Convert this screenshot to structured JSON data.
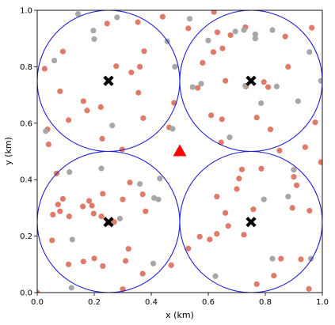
{
  "chart_data": {
    "type": "scatter",
    "title": "",
    "xlabel": "x (km)",
    "ylabel": "y (km)",
    "xlim": [
      0.0,
      1.0
    ],
    "ylim": [
      0.0,
      1.0
    ],
    "xticks": [
      "0.0",
      "0.2",
      "0.4",
      "0.6",
      "0.8",
      "1.0"
    ],
    "yticks": [
      "0.0",
      "0.2",
      "0.4",
      "0.6",
      "0.8",
      "1.0"
    ],
    "grid": false,
    "legend": null,
    "colors": {
      "red_points": "#e07b6a",
      "gray_points": "#a7a7a7",
      "circles": "#1f1fd6",
      "centers": "#000000",
      "triangle": "#ff0000"
    },
    "circles": [
      {
        "cx": 0.25,
        "cy": 0.75,
        "r": 0.25
      },
      {
        "cx": 0.75,
        "cy": 0.75,
        "r": 0.25
      },
      {
        "cx": 0.25,
        "cy": 0.25,
        "r": 0.25
      },
      {
        "cx": 0.75,
        "cy": 0.25,
        "r": 0.25
      }
    ],
    "centers": [
      {
        "x": 0.25,
        "y": 0.75
      },
      {
        "x": 0.75,
        "y": 0.75
      },
      {
        "x": 0.25,
        "y": 0.25
      },
      {
        "x": 0.75,
        "y": 0.25
      }
    ],
    "triangle": {
      "x": 0.5,
      "y": 0.5
    },
    "series": [
      {
        "values": [
          [
            0.245,
            0.953
          ],
          [
            0.353,
            0.958
          ],
          [
            0.44,
            0.977
          ],
          [
            0.09,
            0.854
          ],
          [
            0.277,
            0.802
          ],
          [
            0.33,
            0.78
          ],
          [
            0.36,
            0.8
          ],
          [
            0.375,
            0.855
          ],
          [
            0.355,
            0.708
          ],
          [
            0.08,
            0.713
          ],
          [
            0.162,
            0.678
          ],
          [
            0.223,
            0.657
          ],
          [
            0.11,
            0.611
          ],
          [
            0.175,
            0.645
          ],
          [
            0.372,
            0.618
          ],
          [
            0.463,
            0.585
          ],
          [
            0.48,
            0.672
          ],
          [
            0.228,
            0.545
          ],
          [
            0.298,
            0.507
          ],
          [
            0.036,
            0.578
          ],
          [
            0.04,
            0.525
          ],
          [
            0.026,
            0.793
          ],
          [
            0.62,
            0.994
          ],
          [
            0.53,
            0.936
          ],
          [
            0.632,
            0.922
          ],
          [
            0.678,
            0.912
          ],
          [
            0.73,
            0.94
          ],
          [
            0.88,
            0.8
          ],
          [
            0.87,
            0.907
          ],
          [
            0.58,
            0.814
          ],
          [
            0.618,
            0.852
          ],
          [
            0.65,
            0.865
          ],
          [
            0.66,
            0.75
          ],
          [
            0.795,
            0.746
          ],
          [
            0.81,
            0.728
          ],
          [
            0.963,
            0.938
          ],
          [
            0.563,
            0.725
          ],
          [
            0.61,
            0.628
          ],
          [
            0.648,
            0.614
          ],
          [
            0.645,
            0.532
          ],
          [
            0.77,
            0.62
          ],
          [
            0.818,
            0.578
          ],
          [
            0.85,
            0.503
          ],
          [
            0.94,
            0.515
          ],
          [
            0.975,
            0.603
          ],
          [
            0.732,
            0.73
          ],
          [
            0.63,
            0.34
          ],
          [
            0.708,
            0.404
          ],
          [
            0.718,
            0.436
          ],
          [
            0.786,
            0.439
          ],
          [
            0.7,
            0.367
          ],
          [
            0.758,
            0.295
          ],
          [
            0.66,
            0.282
          ],
          [
            0.67,
            0.236
          ],
          [
            0.63,
            0.208
          ],
          [
            0.605,
            0.188
          ],
          [
            0.57,
            0.198
          ],
          [
            0.53,
            0.156
          ],
          [
            0.725,
            0.205
          ],
          [
            0.895,
            0.3
          ],
          [
            0.9,
            0.41
          ],
          [
            0.91,
            0.38
          ],
          [
            0.955,
            0.29
          ],
          [
            0.995,
            0.462
          ],
          [
            0.83,
            0.06
          ],
          [
            0.855,
            0.12
          ],
          [
            0.925,
            0.118
          ],
          [
            0.953,
            0.013
          ],
          [
            0.77,
            0.03
          ],
          [
            0.068,
            0.422
          ],
          [
            0.09,
            0.332
          ],
          [
            0.073,
            0.312
          ],
          [
            0.08,
            0.288
          ],
          [
            0.055,
            0.276
          ],
          [
            0.112,
            0.27
          ],
          [
            0.16,
            0.305
          ],
          [
            0.182,
            0.325
          ],
          [
            0.192,
            0.308
          ],
          [
            0.198,
            0.28
          ],
          [
            0.23,
            0.35
          ],
          [
            0.225,
            0.27
          ],
          [
            0.25,
            0.246
          ],
          [
            0.27,
            0.25
          ],
          [
            0.3,
            0.33
          ],
          [
            0.325,
            0.39
          ],
          [
            0.37,
            0.348
          ],
          [
            0.38,
            0.288
          ],
          [
            0.32,
            0.155
          ],
          [
            0.31,
            0.112
          ],
          [
            0.2,
            0.121
          ],
          [
            0.23,
            0.094
          ],
          [
            0.11,
            0.1
          ],
          [
            0.052,
            0.185
          ],
          [
            0.162,
            0.11
          ],
          [
            0.37,
            0.067
          ],
          [
            0.47,
            0.097
          ],
          [
            0.3,
            0.012
          ],
          [
            0.0,
            0.0
          ]
        ]
      },
      {
        "values": [
          [
            0.143,
            0.987
          ],
          [
            0.28,
            0.975
          ],
          [
            0.197,
            0.928
          ],
          [
            0.456,
            0.89
          ],
          [
            0.06,
            0.822
          ],
          [
            0.2,
            0.898
          ],
          [
            0.483,
            0.8
          ],
          [
            0.03,
            0.572
          ],
          [
            0.263,
            0.592
          ],
          [
            0.475,
            0.58
          ],
          [
            0.535,
            0.97
          ],
          [
            0.6,
            0.893
          ],
          [
            0.695,
            0.925
          ],
          [
            0.725,
            0.93
          ],
          [
            0.765,
            0.915
          ],
          [
            0.765,
            0.9
          ],
          [
            0.825,
            0.93
          ],
          [
            0.955,
            0.852
          ],
          [
            0.995,
            0.75
          ],
          [
            0.545,
            0.728
          ],
          [
            0.575,
            0.74
          ],
          [
            0.73,
            0.733
          ],
          [
            0.785,
            0.671
          ],
          [
            0.915,
            0.678
          ],
          [
            0.84,
            0.73
          ],
          [
            0.675,
            0.55
          ],
          [
            0.123,
            0.188
          ],
          [
            0.113,
            0.427
          ],
          [
            0.225,
            0.44
          ],
          [
            0.36,
            0.385
          ],
          [
            0.41,
            0.335
          ],
          [
            0.425,
            0.33
          ],
          [
            0.43,
            0.404
          ],
          [
            0.29,
            0.262
          ],
          [
            0.407,
            0.103
          ],
          [
            0.625,
            0.058
          ],
          [
            0.825,
            0.12
          ],
          [
            0.96,
            0.12
          ],
          [
            0.9,
            0.435
          ],
          [
            0.88,
            0.34
          ],
          [
            0.795,
            0.33
          ],
          [
            0.12,
            0.017
          ]
        ]
      }
    ]
  }
}
